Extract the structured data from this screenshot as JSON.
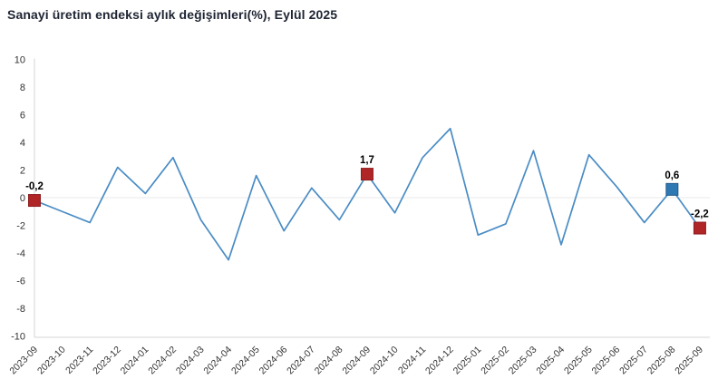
{
  "page": {
    "title": "Sanayi üretim endeksi aylık değişimleri(%), Eylül 2025"
  },
  "chart_data": {
    "type": "line",
    "title": "Sanayi üretim endeksi aylık değişimleri(%), Eylül 2025",
    "xlabel": "",
    "ylabel": "",
    "ylim": [
      -10,
      10
    ],
    "y_ticks": [
      10,
      8,
      6,
      4,
      2,
      0,
      -2,
      -4,
      -6,
      -8,
      -10
    ],
    "grid": "zero-line-only",
    "legend": "none",
    "categories": [
      "2023-09",
      "2023-10",
      "2023-11",
      "2023-12",
      "2024-01",
      "2024-02",
      "2024-03",
      "2024-04",
      "2024-05",
      "2024-06",
      "2024-07",
      "2024-08",
      "2024-09",
      "2024-10",
      "2024-11",
      "2024-12",
      "2025-01",
      "2025-02",
      "2025-03",
      "2025-04",
      "2025-05",
      "2025-06",
      "2025-07",
      "2025-08",
      "2025-09"
    ],
    "values": [
      -0.2,
      -1.0,
      -1.8,
      2.2,
      0.3,
      2.9,
      -1.6,
      -4.5,
      1.6,
      -2.4,
      0.7,
      -1.6,
      1.7,
      -1.1,
      2.9,
      5.0,
      -2.7,
      -1.9,
      3.4,
      -3.4,
      3.1,
      0.8,
      -1.8,
      0.6,
      -2.2
    ],
    "marked_points": [
      {
        "index": 0,
        "category": "2023-09",
        "value": -0.2,
        "label": "-0,2",
        "marker_color": "#b02526",
        "marker_border": "#8e1d1f",
        "marker_name": "marker-2023-09"
      },
      {
        "index": 12,
        "category": "2024-09",
        "value": 1.7,
        "label": "1,7",
        "marker_color": "#b02526",
        "marker_border": "#8e1d1f",
        "marker_name": "marker-2024-09"
      },
      {
        "index": 23,
        "category": "2025-08",
        "value": 0.6,
        "label": "0,6",
        "marker_color": "#2e78b4",
        "marker_border": "#22598a",
        "marker_name": "marker-2025-08"
      },
      {
        "index": 24,
        "category": "2025-09",
        "value": -2.2,
        "label": "-2,2",
        "marker_color": "#b02526",
        "marker_border": "#8e1d1f",
        "marker_name": "marker-2025-09"
      }
    ],
    "colors": {
      "line": "#4a8cc4",
      "grid_zero_line": "#e8e8e8",
      "axis": "#d6d6d6",
      "tick_label": "#333333",
      "point_label": "#000000",
      "title": "#1e2433"
    }
  }
}
